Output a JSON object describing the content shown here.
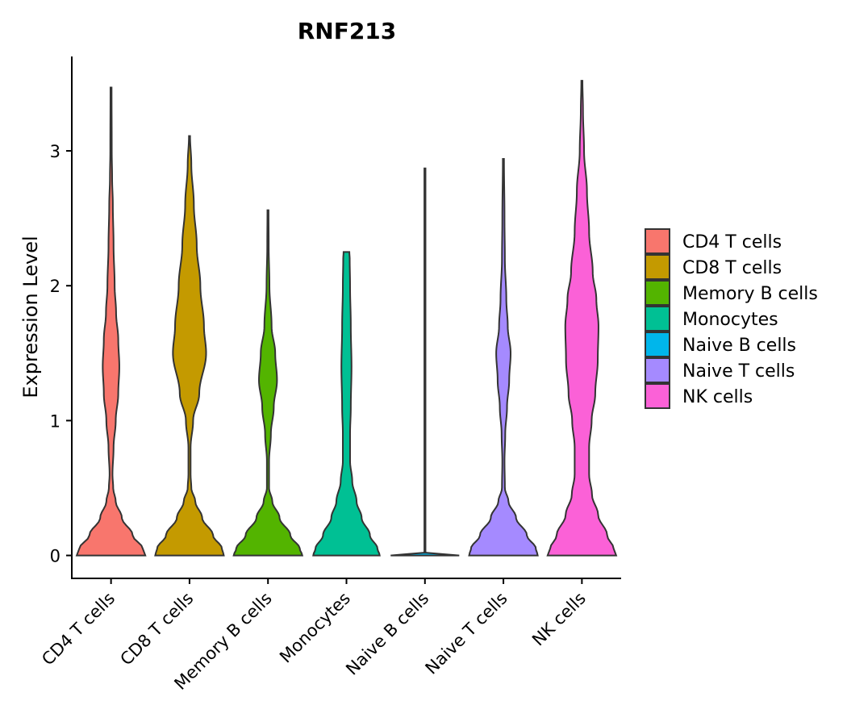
{
  "chart_data": {
    "type": "violin",
    "title": "RNF213",
    "xlabel": "",
    "ylabel": "Expression Level",
    "ylim": [
      -0.17,
      3.7
    ],
    "yticks": [
      0,
      1,
      2,
      3
    ],
    "ytick_labels": [
      "0",
      "1",
      "2",
      "3"
    ],
    "categories": [
      "CD4 T cells",
      "CD8 T cells",
      "Memory B cells",
      "Monocytes",
      "Naive B cells",
      "Naive T cells",
      "NK cells"
    ],
    "legend": {
      "position": "right",
      "entries": [
        {
          "label": "CD4 T cells",
          "color": "#F8766D"
        },
        {
          "label": "CD8 T cells",
          "color": "#C49A00"
        },
        {
          "label": "Memory B cells",
          "color": "#53B400"
        },
        {
          "label": "Monocytes",
          "color": "#00C094"
        },
        {
          "label": "Naive B cells",
          "color": "#00B6EB"
        },
        {
          "label": "Naive T cells",
          "color": "#A58AFF"
        },
        {
          "label": "NK cells",
          "color": "#FB61D7"
        }
      ]
    },
    "series": [
      {
        "name": "CD4 T cells",
        "color": "#F8766D",
        "max": 3.47,
        "profile": [
          [
            0,
            0.95
          ],
          [
            0.05,
            0.88
          ],
          [
            0.15,
            0.6
          ],
          [
            0.28,
            0.3
          ],
          [
            0.4,
            0.13
          ],
          [
            0.5,
            0.06
          ],
          [
            0.6,
            0.04
          ],
          [
            0.8,
            0.07
          ],
          [
            1.0,
            0.13
          ],
          [
            1.2,
            0.2
          ],
          [
            1.4,
            0.23
          ],
          [
            1.6,
            0.2
          ],
          [
            1.8,
            0.14
          ],
          [
            2.0,
            0.1
          ],
          [
            2.3,
            0.07
          ],
          [
            2.6,
            0.05
          ],
          [
            2.8,
            0.03
          ],
          [
            3.0,
            0.02
          ],
          [
            3.47,
            0.015
          ]
        ]
      },
      {
        "name": "CD8 T cells",
        "color": "#C49A00",
        "max": 3.11,
        "profile": [
          [
            0,
            0.95
          ],
          [
            0.05,
            0.9
          ],
          [
            0.15,
            0.65
          ],
          [
            0.28,
            0.35
          ],
          [
            0.4,
            0.16
          ],
          [
            0.5,
            0.05
          ],
          [
            0.6,
            0.03
          ],
          [
            0.8,
            0.03
          ],
          [
            1.0,
            0.1
          ],
          [
            1.2,
            0.27
          ],
          [
            1.5,
            0.46
          ],
          [
            1.7,
            0.4
          ],
          [
            2.0,
            0.3
          ],
          [
            2.3,
            0.2
          ],
          [
            2.6,
            0.12
          ],
          [
            2.9,
            0.05
          ],
          [
            3.11,
            0.015
          ]
        ]
      },
      {
        "name": "Memory B cells",
        "color": "#53B400",
        "max": 2.56,
        "profile": [
          [
            0,
            0.95
          ],
          [
            0.05,
            0.88
          ],
          [
            0.15,
            0.62
          ],
          [
            0.28,
            0.32
          ],
          [
            0.4,
            0.12
          ],
          [
            0.5,
            0.03
          ],
          [
            0.7,
            0.03
          ],
          [
            0.9,
            0.08
          ],
          [
            1.1,
            0.16
          ],
          [
            1.3,
            0.25
          ],
          [
            1.5,
            0.2
          ],
          [
            1.7,
            0.1
          ],
          [
            2.0,
            0.04
          ],
          [
            2.3,
            0.02
          ],
          [
            2.56,
            0.015
          ]
        ]
      },
      {
        "name": "Monocytes",
        "color": "#00C094",
        "max": 2.25,
        "profile": [
          [
            0,
            0.92
          ],
          [
            0.05,
            0.86
          ],
          [
            0.15,
            0.65
          ],
          [
            0.28,
            0.42
          ],
          [
            0.4,
            0.28
          ],
          [
            0.55,
            0.16
          ],
          [
            0.7,
            0.1
          ],
          [
            0.9,
            0.1
          ],
          [
            1.1,
            0.12
          ],
          [
            1.4,
            0.14
          ],
          [
            1.7,
            0.12
          ],
          [
            2.0,
            0.1
          ],
          [
            2.2,
            0.09
          ],
          [
            2.25,
            0.08
          ]
        ]
      },
      {
        "name": "Naive B cells",
        "color": "#00B6EB",
        "max": 2.87,
        "profile": [
          [
            0,
            0.95
          ],
          [
            0.003,
            0.5
          ],
          [
            0.006,
            0.03
          ],
          [
            0.02,
            0.015
          ],
          [
            2.87,
            0.015
          ]
        ]
      },
      {
        "name": "Naive T cells",
        "color": "#A58AFF",
        "max": 2.94,
        "profile": [
          [
            0,
            0.95
          ],
          [
            0.05,
            0.9
          ],
          [
            0.15,
            0.65
          ],
          [
            0.28,
            0.35
          ],
          [
            0.4,
            0.14
          ],
          [
            0.5,
            0.04
          ],
          [
            0.7,
            0.03
          ],
          [
            0.9,
            0.05
          ],
          [
            1.1,
            0.1
          ],
          [
            1.3,
            0.16
          ],
          [
            1.5,
            0.2
          ],
          [
            1.7,
            0.12
          ],
          [
            1.9,
            0.08
          ],
          [
            2.2,
            0.04
          ],
          [
            2.5,
            0.03
          ],
          [
            2.94,
            0.015
          ]
        ]
      },
      {
        "name": "NK cells",
        "color": "#FB61D7",
        "max": 3.52,
        "profile": [
          [
            0,
            0.95
          ],
          [
            0.05,
            0.88
          ],
          [
            0.15,
            0.7
          ],
          [
            0.3,
            0.45
          ],
          [
            0.45,
            0.28
          ],
          [
            0.6,
            0.2
          ],
          [
            0.8,
            0.2
          ],
          [
            1.0,
            0.27
          ],
          [
            1.2,
            0.37
          ],
          [
            1.45,
            0.44
          ],
          [
            1.7,
            0.46
          ],
          [
            1.9,
            0.4
          ],
          [
            2.1,
            0.3
          ],
          [
            2.4,
            0.2
          ],
          [
            2.7,
            0.14
          ],
          [
            3.0,
            0.06
          ],
          [
            3.3,
            0.03
          ],
          [
            3.52,
            0.015
          ]
        ]
      }
    ]
  }
}
